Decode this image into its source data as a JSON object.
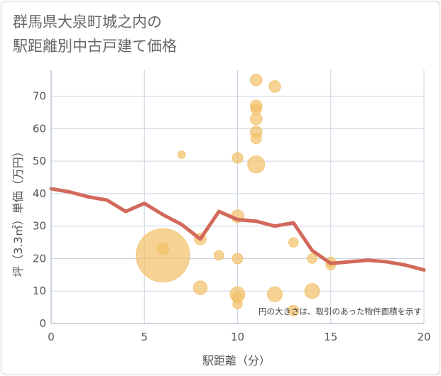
{
  "title_line1": "群馬県大泉町城之内の",
  "title_line2": "駅距離別中古戸建て価格",
  "chart_data": {
    "type": "scatter",
    "title": "群馬県大泉町城之内の駅距離別中古戸建て価格",
    "xlabel": "駅距離（分）",
    "ylabel": "坪（3.3㎡）単価（万円）",
    "xlim": [
      0,
      20
    ],
    "ylim": [
      0,
      78
    ],
    "xticks": [
      0,
      5,
      10,
      15,
      20
    ],
    "yticks": [
      0,
      10,
      20,
      30,
      40,
      50,
      60,
      70
    ],
    "grid": true,
    "note": "円の大きさは、取引のあった物件面積を示す",
    "colors": {
      "bubble": "#f2c26b",
      "line": "#d2695a",
      "grid": "#c9d3e3"
    },
    "bubbles": [
      {
        "x": 6,
        "y": 21,
        "size": 5
      },
      {
        "x": 6,
        "y": 23,
        "size": 1.1
      },
      {
        "x": 7,
        "y": 52,
        "size": 0.7
      },
      {
        "x": 8,
        "y": 26,
        "size": 1.1
      },
      {
        "x": 8,
        "y": 11,
        "size": 1.3
      },
      {
        "x": 9,
        "y": 21,
        "size": 0.9
      },
      {
        "x": 10,
        "y": 51,
        "size": 1
      },
      {
        "x": 10,
        "y": 33,
        "size": 1.2
      },
      {
        "x": 10,
        "y": 20,
        "size": 1
      },
      {
        "x": 10,
        "y": 9,
        "size": 1.4
      },
      {
        "x": 10,
        "y": 8,
        "size": 1
      },
      {
        "x": 10,
        "y": 6,
        "size": 0.9
      },
      {
        "x": 11,
        "y": 75,
        "size": 1.1
      },
      {
        "x": 11,
        "y": 67,
        "size": 1.1
      },
      {
        "x": 11,
        "y": 66,
        "size": 1
      },
      {
        "x": 11,
        "y": 63,
        "size": 1.1
      },
      {
        "x": 11,
        "y": 59,
        "size": 1.1
      },
      {
        "x": 11,
        "y": 57,
        "size": 1
      },
      {
        "x": 11,
        "y": 49,
        "size": 1.6
      },
      {
        "x": 12,
        "y": 73,
        "size": 1.1
      },
      {
        "x": 12,
        "y": 9,
        "size": 1.4
      },
      {
        "x": 13,
        "y": 25,
        "size": 0.9
      },
      {
        "x": 13,
        "y": 4,
        "size": 1
      },
      {
        "x": 14,
        "y": 20,
        "size": 0.9
      },
      {
        "x": 14,
        "y": 10,
        "size": 1.4
      },
      {
        "x": 15,
        "y": 18,
        "size": 0.9
      },
      {
        "x": 15,
        "y": 19,
        "size": 0.9
      }
    ],
    "line": {
      "x": [
        0,
        1,
        2,
        3,
        4,
        5,
        6,
        7,
        8,
        9,
        10,
        11,
        12,
        13,
        14,
        15,
        16,
        17,
        18,
        19,
        20
      ],
      "y": [
        41.5,
        40.5,
        39,
        38,
        34.5,
        37,
        33.5,
        30.5,
        26,
        34.5,
        32,
        31.5,
        30,
        31,
        22.5,
        18.5,
        19,
        19.5,
        19,
        18,
        16.5
      ]
    }
  }
}
